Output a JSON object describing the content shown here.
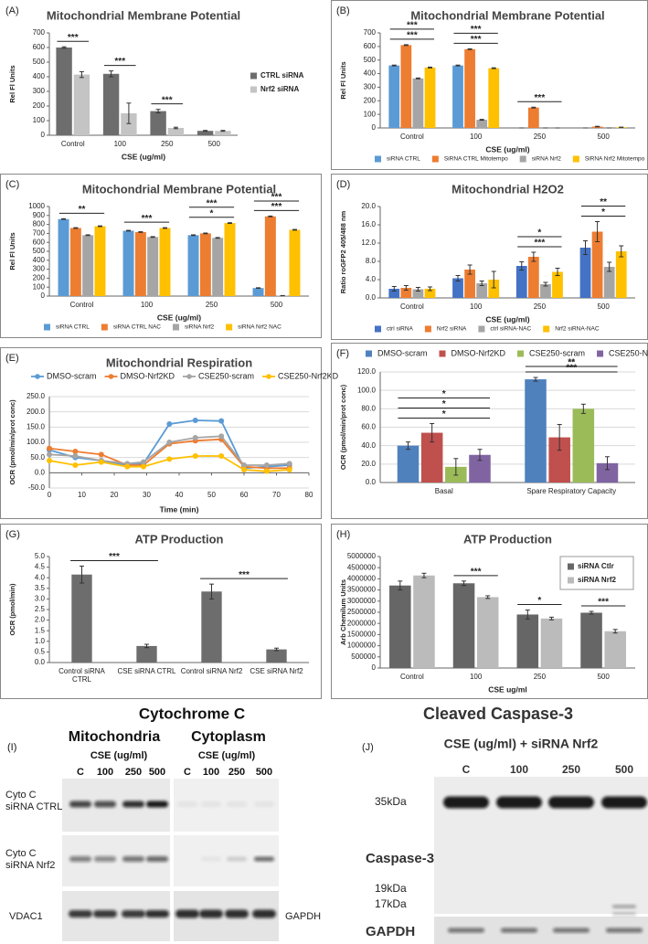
{
  "chart_data": [
    {
      "type": "bar",
      "label": "(A)",
      "title": "Mitochondrial Membrane Potential",
      "xlabel": "CSE (ug/ml)",
      "ylabel": "Rel Fl Units",
      "categories": [
        "Control",
        "100",
        "250",
        "500"
      ],
      "series": [
        {
          "name": "CTRL siRNA",
          "color": "#6d6d6d",
          "values": [
            600,
            420,
            165,
            30
          ],
          "errors": [
            5,
            20,
            12,
            3
          ]
        },
        {
          "name": "Nrf2 siRNA",
          "color": "#c4c4c4",
          "values": [
            415,
            150,
            50,
            30
          ],
          "errors": [
            20,
            70,
            5,
            3
          ]
        }
      ],
      "ylim": [
        0,
        700
      ],
      "yticks": [
        0,
        100,
        200,
        300,
        400,
        500,
        600,
        700
      ],
      "legend": "right",
      "grid": false,
      "annotations": [
        {
          "text": "***",
          "categories": [
            "Control"
          ]
        },
        {
          "text": "***",
          "categories": [
            "100"
          ]
        },
        {
          "text": "***",
          "categories": [
            "250"
          ]
        }
      ]
    },
    {
      "type": "bar",
      "label": "(B)",
      "title": "Mitochondrial Membrane Potential",
      "xlabel": "CSE (ug/ml)",
      "ylabel": "Rel Fl Units",
      "categories": [
        "Control",
        "100",
        "250",
        "500"
      ],
      "series": [
        {
          "name": "siRNA CTRL",
          "color": "#5b9bd5",
          "values": [
            460,
            460,
            0,
            0
          ],
          "errors": [
            3,
            3,
            0,
            0
          ]
        },
        {
          "name": "SiRNA CTRL Mitotempo",
          "color": "#ed7d31",
          "values": [
            610,
            580,
            150,
            10
          ],
          "errors": [
            3,
            3,
            3,
            2
          ]
        },
        {
          "name": "siRNA Nrf2",
          "color": "#a5a5a5",
          "values": [
            365,
            60,
            0,
            0
          ],
          "errors": [
            3,
            3,
            0,
            0
          ]
        },
        {
          "name": "SiRNA Nrf2 Mitotempo",
          "color": "#ffc000",
          "values": [
            445,
            440,
            0,
            5
          ],
          "errors": [
            3,
            3,
            0,
            1
          ]
        }
      ],
      "ylim": [
        0,
        700
      ],
      "yticks": [
        0,
        100,
        200,
        300,
        400,
        500,
        600,
        700
      ],
      "legend": "bottom",
      "grid": false,
      "annotations": [
        {
          "text": "***",
          "categories": [
            "Control"
          ]
        },
        {
          "text": "***",
          "categories": [
            "Control"
          ]
        },
        {
          "text": "***",
          "categories": [
            "100"
          ]
        },
        {
          "text": "***",
          "categories": [
            "100"
          ]
        },
        {
          "text": "***",
          "categories": [
            "250"
          ]
        }
      ]
    },
    {
      "type": "bar",
      "label": "(C)",
      "title": "Mitochondrial Membrane Potential",
      "xlabel": "CSE (ug/ml)",
      "ylabel": "Rel Fl Units",
      "categories": [
        "Control",
        "100",
        "250",
        "500"
      ],
      "series": [
        {
          "name": "siRNA CTRL",
          "color": "#5b9bd5",
          "values": [
            860,
            730,
            680,
            90
          ],
          "errors": [
            4,
            4,
            4,
            3
          ]
        },
        {
          "name": "siRNA CTRL NAC",
          "color": "#ed7d31",
          "values": [
            760,
            715,
            700,
            890
          ],
          "errors": [
            4,
            4,
            4,
            4
          ]
        },
        {
          "name": "siRNA Nrf2",
          "color": "#a5a5a5",
          "values": [
            680,
            660,
            650,
            5
          ],
          "errors": [
            4,
            4,
            4,
            1
          ]
        },
        {
          "name": "siRNA Nrf2 NAC",
          "color": "#ffc000",
          "values": [
            780,
            760,
            815,
            740
          ],
          "errors": [
            4,
            4,
            4,
            4
          ]
        }
      ],
      "ylim": [
        0,
        1000
      ],
      "yticks": [
        0,
        100,
        200,
        300,
        400,
        500,
        600,
        700,
        800,
        900,
        1000
      ],
      "legend": "bottom",
      "grid": false,
      "annotations": [
        {
          "text": "**",
          "categories": [
            "Control"
          ]
        },
        {
          "text": "***",
          "categories": [
            "100"
          ]
        },
        {
          "text": "*",
          "categories": [
            "250"
          ]
        },
        {
          "text": "***",
          "categories": [
            "250"
          ]
        },
        {
          "text": "***",
          "categories": [
            "500"
          ]
        },
        {
          "text": "***",
          "categories": [
            "500"
          ]
        }
      ]
    },
    {
      "type": "bar",
      "label": "(D)",
      "title": "Mitochondrial H2O2",
      "xlabel": "CSE (ug/ml)",
      "ylabel": "Ratio roGFP2 405/488 nm",
      "categories": [
        "Control",
        "100",
        "250",
        "500"
      ],
      "series": [
        {
          "name": "ctrl siRNA",
          "color": "#4472c4",
          "values": [
            2.0,
            4.3,
            7.0,
            11.0
          ],
          "errors": [
            0.5,
            0.6,
            0.9,
            1.5
          ]
        },
        {
          "name": "Nrf2 siRNA",
          "color": "#ed7d31",
          "values": [
            2.2,
            6.2,
            9.0,
            14.5
          ],
          "errors": [
            0.5,
            1.0,
            1.0,
            2.2
          ]
        },
        {
          "name": "ctrl siRNA-NAC",
          "color": "#a5a5a5",
          "values": [
            1.9,
            3.2,
            3.0,
            6.8
          ],
          "errors": [
            0.4,
            0.5,
            0.4,
            1.0
          ]
        },
        {
          "name": "Nrf2 siRNA-NAC",
          "color": "#ffc000",
          "values": [
            2.0,
            4.0,
            5.7,
            10.2
          ],
          "errors": [
            0.4,
            1.8,
            0.8,
            1.2
          ]
        }
      ],
      "ylim": [
        0,
        20
      ],
      "yticks": [
        {
          "value": 0,
          "label": "0.0"
        },
        {
          "value": 4,
          "label": "4.0"
        },
        {
          "value": 8,
          "label": "8.0"
        },
        {
          "value": 12,
          "label": "12.0"
        },
        {
          "value": 16,
          "label": "16.0"
        },
        {
          "value": 20,
          "label": "20.0"
        }
      ],
      "legend": "bottom",
      "grid": false,
      "annotations": [
        {
          "text": "***",
          "categories": [
            "250"
          ]
        },
        {
          "text": "*",
          "categories": [
            "250"
          ]
        },
        {
          "text": "*",
          "categories": [
            "500"
          ]
        },
        {
          "text": "**",
          "categories": [
            "500"
          ]
        }
      ]
    },
    {
      "type": "line",
      "label": "(E)",
      "title": "Mitochondrial Respiration",
      "xlabel": "Time (min)",
      "ylabel": "OCR (pmol/min/prot conc)",
      "x": [
        0,
        8,
        16,
        24,
        29,
        37,
        45,
        53,
        60,
        67,
        74
      ],
      "series": [
        {
          "name": "DMSO-scram",
          "color": "#5b9bd5",
          "values": [
            75,
            50,
            40,
            25,
            30,
            160,
            172,
            170,
            15,
            20,
            25
          ]
        },
        {
          "name": "DMSO-Nrf2KD",
          "color": "#ed7d31",
          "values": [
            80,
            70,
            60,
            25,
            25,
            95,
            105,
            110,
            20,
            15,
            15
          ]
        },
        {
          "name": "CSE250-scram",
          "color": "#a5a5a5",
          "values": [
            60,
            55,
            40,
            30,
            35,
            100,
            115,
            120,
            25,
            25,
            30
          ]
        },
        {
          "name": "CSE250-Nrf2KD",
          "color": "#ffc000",
          "values": [
            40,
            25,
            35,
            20,
            20,
            45,
            55,
            55,
            10,
            5,
            10
          ]
        }
      ],
      "xlim": [
        0,
        80
      ],
      "xticks": [
        0,
        10,
        20,
        30,
        40,
        50,
        60,
        70,
        80
      ],
      "ylim": [
        -50,
        250
      ],
      "yticks": [
        {
          "value": -50,
          "label": "-50.0"
        },
        {
          "value": 0,
          "label": "0.0"
        },
        {
          "value": 50,
          "label": "50.0"
        },
        {
          "value": 100,
          "label": "100.0"
        },
        {
          "value": 150,
          "label": "150.0"
        },
        {
          "value": 200,
          "label": "200.0"
        },
        {
          "value": 250,
          "label": "250.0"
        }
      ],
      "legend": "top",
      "grid": true
    },
    {
      "type": "bar",
      "label": "(F)",
      "ylabel": "OCR (pmol/min/prot conc)",
      "categories": [
        "Basal",
        "Spare Respiratory Capacity"
      ],
      "series": [
        {
          "name": "DMSO-scram",
          "color": "#4f81bd",
          "values": [
            40,
            112
          ],
          "errors": [
            4,
            2
          ]
        },
        {
          "name": "DMSO-Nrf2KD",
          "color": "#c0504d",
          "values": [
            54,
            49
          ],
          "errors": [
            10,
            14
          ]
        },
        {
          "name": "CSE250-scram",
          "color": "#9bbb59",
          "values": [
            17,
            80
          ],
          "errors": [
            9,
            5
          ]
        },
        {
          "name": "CSE250-Nrf2KD",
          "color": "#8064a2",
          "values": [
            30,
            21
          ],
          "errors": [
            6,
            7
          ]
        }
      ],
      "ylim": [
        0,
        120
      ],
      "yticks": [
        {
          "value": 0,
          "label": "0.0"
        },
        {
          "value": 20,
          "label": "20.0"
        },
        {
          "value": 40,
          "label": "40.0"
        },
        {
          "value": 60,
          "label": "60.0"
        },
        {
          "value": 80,
          "label": "80.0"
        },
        {
          "value": 100,
          "label": "100.0"
        },
        {
          "value": 120,
          "label": "120.0"
        }
      ],
      "legend": "top",
      "grid": true,
      "annotations": [
        {
          "text": "*",
          "categories": [
            "Basal"
          ]
        },
        {
          "text": "*",
          "categories": [
            "Basal"
          ]
        },
        {
          "text": "*",
          "categories": [
            "Basal"
          ]
        },
        {
          "text": "***",
          "categories": [
            "Spare Respiratory Capacity"
          ]
        },
        {
          "text": "**",
          "categories": [
            "Spare Respiratory Capacity"
          ]
        },
        {
          "text": "**",
          "categories": [
            "Spare Respiratory Capacity"
          ]
        }
      ]
    },
    {
      "type": "bar",
      "label": "(G)",
      "title": "ATP Production",
      "ylabel": "OCR (pmol/min)",
      "categories": [
        "Control siRNA CTRL",
        "CSE siRNA CTRL",
        "Control siRNA Nrf2",
        "CSE siRNA Nrf2"
      ],
      "series": [
        {
          "color": "#6d6d6d",
          "values": [
            4.15,
            0.78,
            3.35,
            0.62
          ],
          "errors": [
            0.4,
            0.08,
            0.35,
            0.06
          ]
        }
      ],
      "ylim": [
        0,
        5
      ],
      "yticks": [
        {
          "value": 0,
          "label": "0.0"
        },
        0.5,
        {
          "value": 1,
          "label": "1.0"
        },
        1.5,
        {
          "value": 2,
          "label": "2.0"
        },
        2.5,
        {
          "value": 3,
          "label": "3.0"
        },
        3.5,
        {
          "value": 4,
          "label": "4.0"
        },
        4.5,
        {
          "value": 5,
          "label": "5.0"
        }
      ],
      "grid": false,
      "annotations": [
        {
          "text": "***",
          "categories": [
            "Control siRNA CTRL",
            "CSE siRNA CTRL"
          ]
        },
        {
          "text": "***",
          "categories": [
            "Control siRNA Nrf2",
            "CSE siRNA Nrf2"
          ]
        }
      ]
    },
    {
      "type": "bar",
      "label": "(H)",
      "title": "ATP Production",
      "xlabel": "CSE ug/ml",
      "ylabel": "Arb Chemilum Units",
      "categories": [
        "Control",
        "100",
        "250",
        "500"
      ],
      "series": [
        {
          "name": "siRNA Ctlr",
          "color": "#666666",
          "values": [
            3700000,
            3800000,
            2400000,
            2480000
          ],
          "errors": [
            200000,
            100000,
            200000,
            60000
          ]
        },
        {
          "name": "siRNA Nrf2",
          "color": "#bbbbbb",
          "values": [
            4150000,
            3180000,
            2220000,
            1650000
          ],
          "errors": [
            100000,
            60000,
            60000,
            80000
          ]
        }
      ],
      "ylim": [
        0,
        5000000
      ],
      "yticks": [
        0,
        500000,
        1000000,
        1500000,
        2000000,
        2500000,
        3000000,
        3500000,
        4000000,
        4500000,
        5000000
      ],
      "legend": "top-right",
      "grid": false,
      "annotations": [
        {
          "text": "***",
          "categories": [
            "100"
          ]
        },
        {
          "text": "*",
          "categories": [
            "250"
          ]
        },
        {
          "text": "***",
          "categories": [
            "500"
          ]
        }
      ]
    }
  ],
  "blots": {
    "cytochrome": {
      "label": "(I)",
      "title": "Cytochrome C",
      "sections": [
        {
          "name": "Mitochondria",
          "treatment": "CSE (ug/ml)",
          "lanes": [
            "C",
            "100",
            "250",
            "500"
          ]
        },
        {
          "name": "Cytoplasm",
          "treatment": "CSE (ug/ml)",
          "lanes": [
            "C",
            "100",
            "250",
            "500"
          ]
        }
      ],
      "rows": [
        "Cyto C siRNA CTRL",
        "Cyto C siRNA Nrf2",
        "VDAC1"
      ],
      "loading": "GAPDH"
    },
    "caspase": {
      "label": "(J)",
      "title": "Cleaved Caspase-3",
      "treatment": "CSE (ug/ml) + siRNA Nrf2",
      "lanes": [
        "C",
        "100",
        "250",
        "500"
      ],
      "markers": [
        "35kDa",
        "19kDa",
        "17kDa"
      ],
      "protein": "Caspase-3",
      "loading": "GAPDH"
    }
  }
}
